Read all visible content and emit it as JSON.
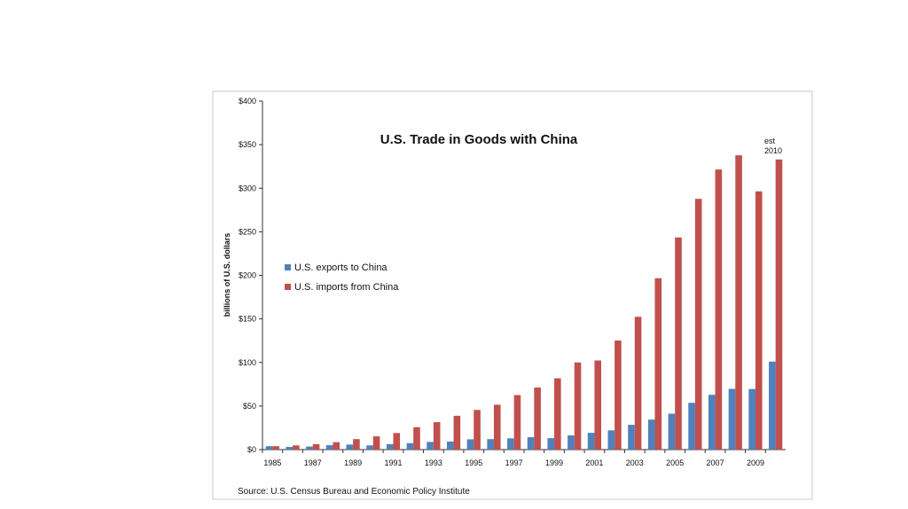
{
  "chart_data": {
    "type": "bar",
    "title": "U.S. Trade in Goods with China",
    "ylabel": "billions of U.S. dollars",
    "xlabel": "",
    "ylim": [
      0,
      400
    ],
    "y_ticks": [
      "$0",
      "$50",
      "$100",
      "$150",
      "$200",
      "$250",
      "$300",
      "$350",
      "$400"
    ],
    "y_tick_values": [
      0,
      50,
      100,
      150,
      200,
      250,
      300,
      350,
      400
    ],
    "categories": [
      "1985",
      "1986",
      "1987",
      "1988",
      "1989",
      "1990",
      "1991",
      "1992",
      "1993",
      "1994",
      "1995",
      "1996",
      "1997",
      "1998",
      "1999",
      "2000",
      "2001",
      "2002",
      "2003",
      "2004",
      "2005",
      "2006",
      "2007",
      "2008",
      "2009",
      "2010"
    ],
    "x_tick_labels": [
      "1985",
      "1987",
      "1989",
      "1991",
      "1993",
      "1995",
      "1997",
      "1999",
      "2001",
      "2003",
      "2005",
      "2007",
      "2009"
    ],
    "series": [
      {
        "name": "U.S. exports to China",
        "color": "#4f81bd",
        "values": [
          3.9,
          3.1,
          3.5,
          5.0,
          5.8,
          4.8,
          6.3,
          7.4,
          8.8,
          9.3,
          11.8,
          12.0,
          12.9,
          14.2,
          13.1,
          16.3,
          19.2,
          22.1,
          28.4,
          34.4,
          41.2,
          53.7,
          62.9,
          69.7,
          69.5,
          101.0
        ]
      },
      {
        "name": "U.S. imports from China",
        "color": "#c0504d",
        "values": [
          3.9,
          4.8,
          6.3,
          8.5,
          12.0,
          15.2,
          19.0,
          25.7,
          31.5,
          38.8,
          45.5,
          51.5,
          62.6,
          71.2,
          81.8,
          100.0,
          102.3,
          125.2,
          152.4,
          196.7,
          243.5,
          287.8,
          321.5,
          337.8,
          296.4,
          333.0
        ]
      }
    ],
    "legend_position": "left-middle",
    "grid": false,
    "annotation": {
      "line1": "est",
      "line2": "2010"
    },
    "source": "Source:  U.S. Census Bureau and Economic Policy Institute"
  }
}
